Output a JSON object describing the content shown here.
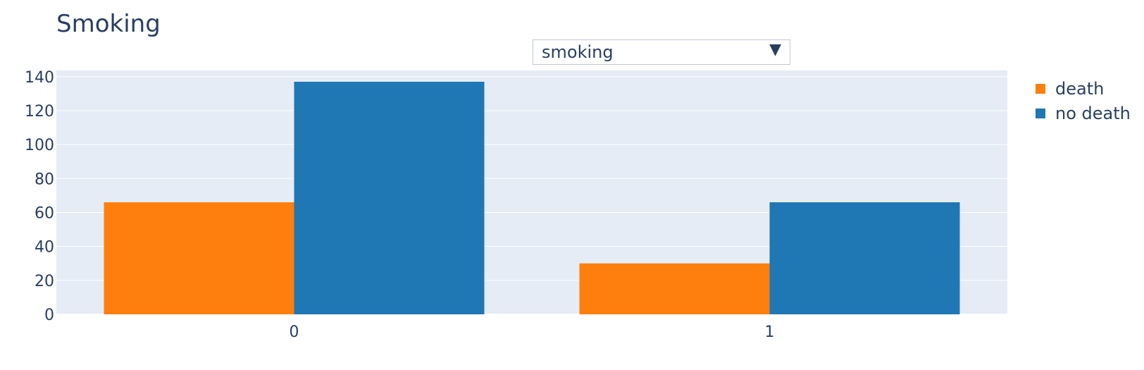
{
  "chart_data": {
    "type": "bar",
    "title": "Smoking",
    "categories": [
      "0",
      "1"
    ],
    "series": [
      {
        "name": "death",
        "values": [
          66,
          30
        ],
        "color": "#ff7f0e"
      },
      {
        "name": "no death",
        "values": [
          137,
          66
        ],
        "color": "#1f77b4"
      }
    ],
    "ylim": [
      0,
      140
    ],
    "yticks": [
      0,
      20,
      40,
      60,
      80,
      100,
      120,
      140
    ],
    "grid": true,
    "legend_position": "top-right",
    "plot_background": "#e5ecf6",
    "gridline_color": "#ffffff",
    "xlabel": "",
    "ylabel": ""
  },
  "dropdown": {
    "selected": "smoking",
    "arrow_icon": "▼"
  }
}
